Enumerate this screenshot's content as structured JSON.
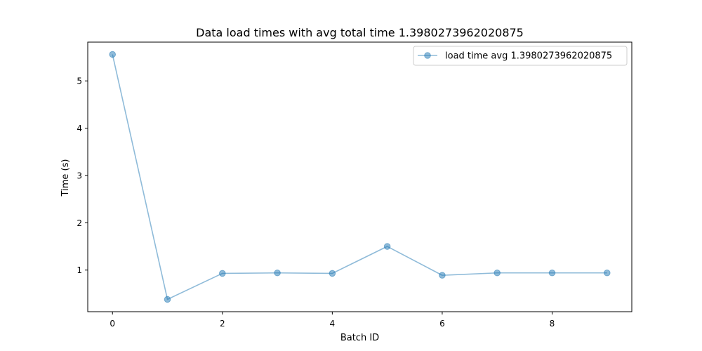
{
  "chart_data": {
    "type": "line",
    "title": "Data load times with  avg total time 1.3980273962020875",
    "xlabel": "Batch ID",
    "ylabel": "Time (s)",
    "xlim": [
      -0.45,
      9.45
    ],
    "ylim": [
      0.12,
      5.82
    ],
    "x_ticks": [
      0,
      2,
      4,
      6,
      8
    ],
    "y_ticks": [
      1,
      2,
      3,
      4,
      5
    ],
    "grid": false,
    "legend_position": "upper right",
    "series": [
      {
        "name": "load time avg 1.3980273962020875",
        "color": "#1f77b4",
        "marker": "circle",
        "x": [
          0,
          1,
          2,
          3,
          4,
          5,
          6,
          7,
          8,
          9
        ],
        "y": [
          5.56,
          0.38,
          0.93,
          0.94,
          0.93,
          1.5,
          0.89,
          0.94,
          0.94,
          0.94
        ]
      }
    ]
  }
}
